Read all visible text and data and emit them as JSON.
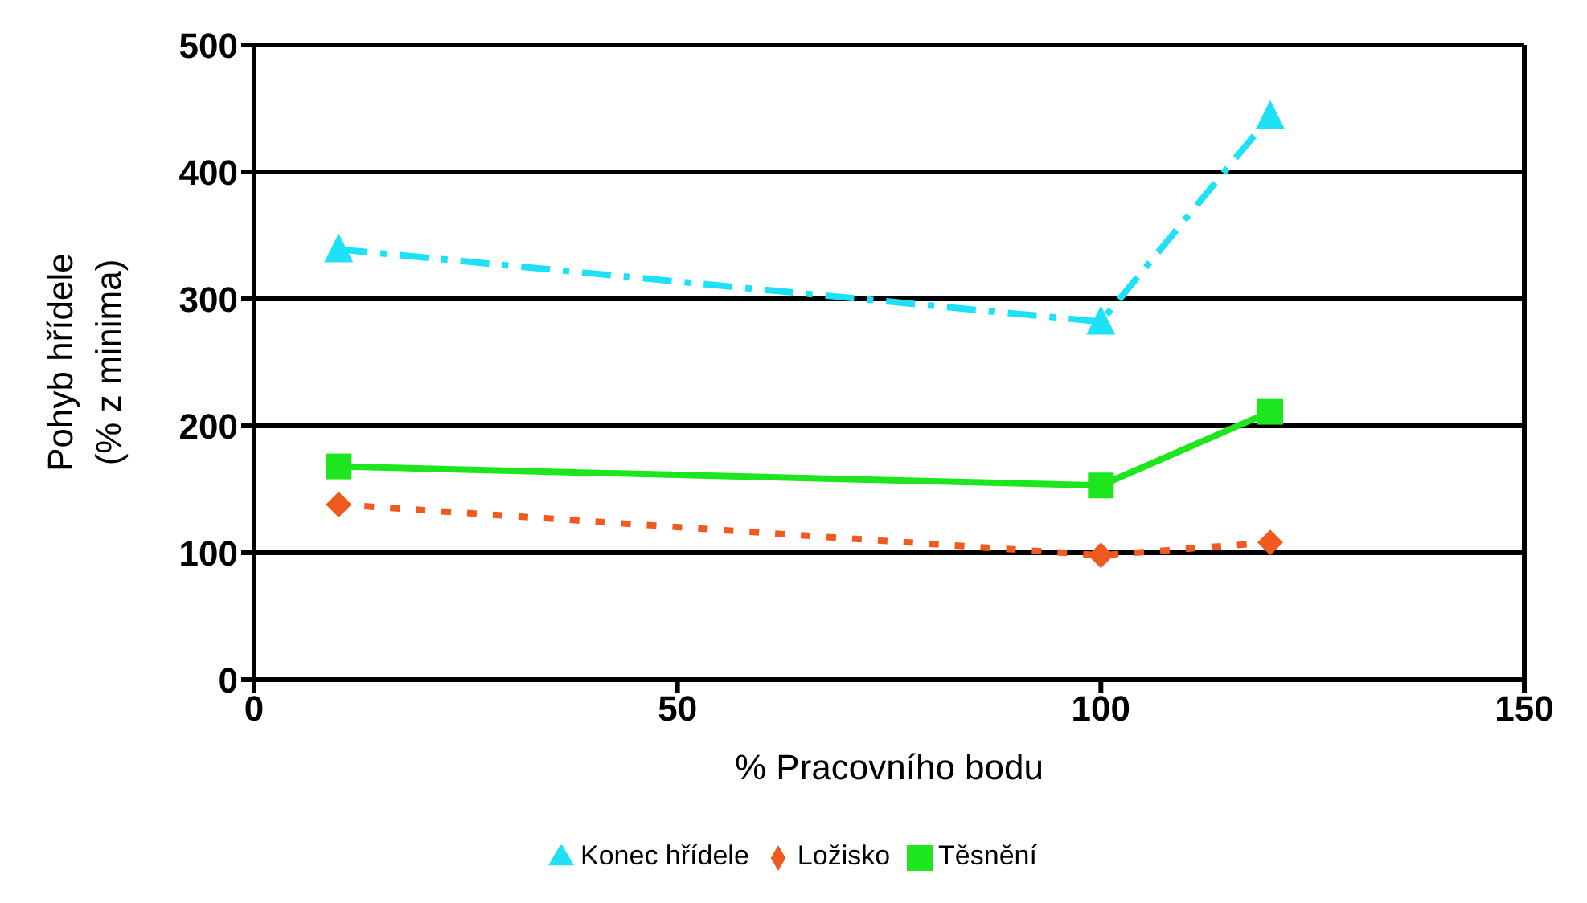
{
  "chart_data": {
    "type": "line",
    "xlabel": "% Pracovního bodu",
    "ylabel": "Pohyb hřídele\n(% z minima)",
    "x": [
      10,
      100,
      120
    ],
    "series": [
      {
        "name": "Ložisko",
        "color": "#f05a1e",
        "values": [
          138,
          98,
          108
        ],
        "marker": "diamond",
        "line_style": "dotted"
      },
      {
        "name": "Těsnění",
        "color": "#1ee61e",
        "values": [
          168,
          153,
          211
        ],
        "marker": "square",
        "line_style": "solid"
      },
      {
        "name": "Konec hřídele",
        "color": "#1ee1f5",
        "values": [
          339,
          282,
          444
        ],
        "marker": "triangle",
        "line_style": "dashed"
      }
    ],
    "xlim": [
      0,
      150
    ],
    "xticks": [
      0,
      50,
      100,
      150
    ],
    "ylim": [
      0,
      500
    ],
    "yticks": [
      0,
      100,
      200,
      300,
      400,
      500
    ],
    "grid": "y",
    "legend": "bottom"
  }
}
